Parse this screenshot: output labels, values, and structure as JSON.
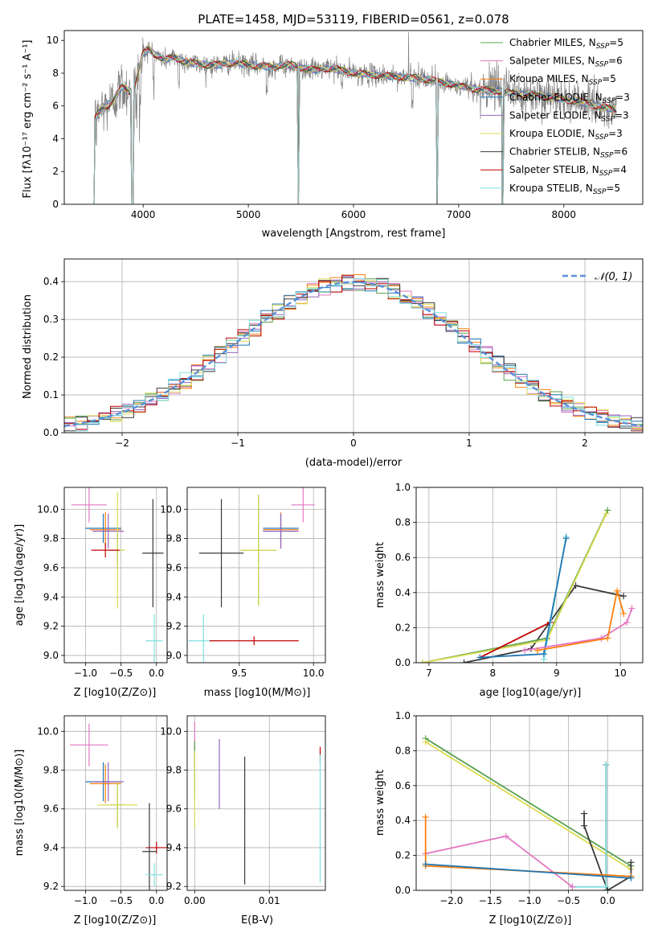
{
  "chart_data": [
    {
      "type": "line",
      "title": "PLATE=1458, MJD=53119, FIBERID=0561, z=0.078",
      "xlabel": "wavelength [Angstrom, rest frame]",
      "ylabel": "Flux [fλ10⁻¹⁷ erg cm⁻² s⁻¹ A⁻¹]",
      "xlim": [
        3250,
        8750
      ],
      "ylim": [
        0,
        10.6
      ],
      "xticks": [
        4000,
        5000,
        6000,
        7000,
        8000
      ],
      "yticks": [
        0,
        2,
        4,
        6,
        8,
        10
      ],
      "legend": {
        "placement": "top-right",
        "entries": [
          {
            "name": "Chabrier MILES",
            "nssp": "5",
            "color": "#59a14f"
          },
          {
            "name": "Salpeter MILES",
            "nssp": "6",
            "color": "#e377c2"
          },
          {
            "name": "Kroupa MILES",
            "nssp": "5",
            "color": "#ff7f0e"
          },
          {
            "name": "Chabrier ELODIE",
            "nssp": "3",
            "color": "#1f77b4"
          },
          {
            "name": "Salpeter ELODIE",
            "nssp": "3",
            "color": "#9467bd"
          },
          {
            "name": "Kroupa ELODIE",
            "nssp": "3",
            "color": "#dbdb50"
          },
          {
            "name": "Chabrier STELIB",
            "nssp": "6",
            "color": "#3a3a3a"
          },
          {
            "name": "Salpeter STELIB",
            "nssp": "4",
            "color": "#c00000"
          },
          {
            "name": "Kroupa STELIB",
            "nssp": "5",
            "color": "#7fdfe0"
          }
        ]
      },
      "data_series": {
        "name": "data",
        "color": "#808080"
      },
      "spectrum_anchors": {
        "x": [
          3520,
          3600,
          3700,
          3800,
          3900,
          4000,
          4050,
          4100,
          4200,
          4300,
          4400,
          4500,
          4600,
          4700,
          4800,
          4900,
          5000,
          5200,
          5400,
          5600,
          5800,
          6000,
          6200,
          6400,
          6600,
          6800,
          7000,
          7200,
          7400,
          7600,
          7800,
          8000,
          8200,
          8400,
          8500
        ],
        "y": [
          5.0,
          5.8,
          6.2,
          7.2,
          6.8,
          9.2,
          9.5,
          9.2,
          8.8,
          9.0,
          8.7,
          8.6,
          8.5,
          8.5,
          8.6,
          8.6,
          8.5,
          8.4,
          8.5,
          8.2,
          8.3,
          8.0,
          7.9,
          7.8,
          7.7,
          7.5,
          7.2,
          7.0,
          6.9,
          6.7,
          6.6,
          6.4,
          6.2,
          5.9,
          5.7
        ]
      }
    },
    {
      "type": "bar",
      "xlabel": "(data-model)/error",
      "ylabel": "Normed distribution",
      "xlim": [
        -2.5,
        2.5
      ],
      "ylim": [
        0,
        0.46
      ],
      "xticks": [
        -2,
        -1,
        0,
        1,
        2
      ],
      "yticks": [
        0.0,
        0.1,
        0.2,
        0.3,
        0.4
      ],
      "legend": {
        "placement": "top-right",
        "entries": [
          {
            "name": "𝒩(0, 1)",
            "color": "#5b8fd6",
            "style": "dashed"
          }
        ]
      },
      "bin_width": 0.1,
      "bin_start": -2.5,
      "num_bins": 50,
      "num_histograms": 9
    },
    {
      "type": "scatter",
      "xlabel": "Z [log10(Z/Z⊙)]",
      "ylabel": "age  [log10(age/yr)]",
      "xlim": [
        -1.3,
        0.15
      ],
      "ylim": [
        8.95,
        10.15
      ],
      "xticks": [
        -1.0,
        -0.5,
        0.0
      ],
      "yticks": [
        9.0,
        9.2,
        9.4,
        9.6,
        9.8,
        10.0
      ],
      "points": [
        {
          "color": "#e377c2",
          "x": -0.95,
          "xerr": 0.25,
          "y": 10.03,
          "yerr": 0.12
        },
        {
          "color": "#1f77b4",
          "x": -0.75,
          "xerr": 0.25,
          "y": 9.87,
          "yerr": 0.1
        },
        {
          "color": "#ff7f0e",
          "x": -0.72,
          "xerr": 0.22,
          "y": 9.86,
          "yerr": 0.12
        },
        {
          "color": "#9467bd",
          "x": -0.68,
          "xerr": 0.22,
          "y": 9.85,
          "yerr": 0.12
        },
        {
          "color": "#59a14f",
          "x": -0.55,
          "xerr": 0.1,
          "y": 9.72,
          "yerr": 0.12
        },
        {
          "color": "#dbdb50",
          "x": -0.55,
          "xerr": 0.1,
          "y": 9.72,
          "yerr": 0.4
        },
        {
          "color": "#c00000",
          "x": -0.72,
          "xerr": 0.2,
          "y": 9.72,
          "yerr": 0.05
        },
        {
          "color": "#3a3a3a",
          "x": -0.05,
          "xerr": 0.15,
          "y": 9.7,
          "yerr": 0.37
        },
        {
          "color": "#7fdfe0",
          "x": -0.03,
          "xerr": 0.12,
          "y": 9.1,
          "yerr": 0.18
        }
      ]
    },
    {
      "type": "scatter",
      "xlabel": "mass [log10(M/M⊙)]",
      "ylabel": "",
      "xlim": [
        9.15,
        10.08
      ],
      "ylim": [
        8.95,
        10.15
      ],
      "xticks": [
        9.5,
        10.0
      ],
      "yticks": [
        9.0,
        9.2,
        9.4,
        9.6,
        9.8,
        10.0
      ],
      "points": [
        {
          "color": "#e377c2",
          "x": 9.93,
          "xerr": 0.08,
          "y": 10.03,
          "yerr": 0.12
        },
        {
          "color": "#1f77b4",
          "x": 9.78,
          "xerr": 0.12,
          "y": 9.87,
          "yerr": 0.1
        },
        {
          "color": "#ff7f0e",
          "x": 9.78,
          "xerr": 0.12,
          "y": 9.86,
          "yerr": 0.12
        },
        {
          "color": "#9467bd",
          "x": 9.78,
          "xerr": 0.12,
          "y": 9.85,
          "yerr": 0.12
        },
        {
          "color": "#59a14f",
          "x": 9.63,
          "xerr": 0.12,
          "y": 9.72,
          "yerr": 0.38
        },
        {
          "color": "#dbdb50",
          "x": 9.63,
          "xerr": 0.12,
          "y": 9.72,
          "yerr": 0.38
        },
        {
          "color": "#3a3a3a",
          "x": 9.38,
          "xerr": 0.15,
          "y": 9.7,
          "yerr": 0.37
        },
        {
          "color": "#7fdfe0",
          "x": 9.26,
          "xerr": 0.1,
          "y": 9.1,
          "yerr": 0.18
        },
        {
          "color": "#c00000",
          "x": 9.6,
          "xerr": 0.3,
          "y": 9.1,
          "yerr": 0.03
        }
      ]
    },
    {
      "type": "line",
      "xlabel": "age  [log10(age/yr)]",
      "ylabel": "mass weight",
      "xlim": [
        6.8,
        10.35
      ],
      "ylim": [
        0,
        1.0
      ],
      "xticks": [
        7,
        8,
        9,
        10
      ],
      "yticks": [
        0.0,
        0.2,
        0.4,
        0.6,
        0.8,
        1.0
      ],
      "series": [
        {
          "color": "#3a3a3a",
          "x": [
            7.55,
            8.6,
            9.3,
            10.05
          ],
          "y": [
            0.0,
            0.08,
            0.44,
            0.38
          ]
        },
        {
          "color": "#59a14f",
          "x": [
            6.9,
            8.85,
            9.8
          ],
          "y": [
            0.0,
            0.14,
            0.87
          ]
        },
        {
          "color": "#dbdb50",
          "x": [
            6.9,
            8.85,
            9.78
          ],
          "y": [
            0.0,
            0.13,
            0.85
          ]
        },
        {
          "color": "#c00000",
          "x": [
            7.8,
            8.9
          ],
          "y": [
            0.03,
            0.23
          ]
        },
        {
          "color": "#7fdfe0",
          "x": [
            8.8,
            9.15
          ],
          "y": [
            0.02,
            0.72
          ]
        },
        {
          "color": "#1f77b4",
          "x": [
            7.8,
            8.8,
            9.15
          ],
          "y": [
            0.03,
            0.05,
            0.71
          ]
        },
        {
          "color": "#e377c2",
          "x": [
            8.5,
            9.7,
            10.1,
            10.18
          ],
          "y": [
            0.07,
            0.14,
            0.23,
            0.31
          ]
        },
        {
          "color": "#ff7f0e",
          "x": [
            8.7,
            9.8,
            9.95,
            10.05
          ],
          "y": [
            0.07,
            0.14,
            0.41,
            0.28
          ]
        }
      ]
    },
    {
      "type": "scatter",
      "xlabel": "Z [log10(Z/Z⊙)]",
      "ylabel": "mass [log10(M/M⊙)]",
      "xlim": [
        -1.3,
        0.15
      ],
      "ylim": [
        9.18,
        10.08
      ],
      "xticks": [
        -1.0,
        -0.5,
        0.0
      ],
      "yticks": [
        9.2,
        9.4,
        9.6,
        9.8,
        10.0
      ],
      "points": [
        {
          "color": "#e377c2",
          "x": -0.95,
          "xerr": 0.27,
          "y": 9.93,
          "yerr": 0.11
        },
        {
          "color": "#1f77b4",
          "x": -0.75,
          "xerr": 0.25,
          "y": 9.74,
          "yerr": 0.1
        },
        {
          "color": "#ff7f0e",
          "x": -0.72,
          "xerr": 0.22,
          "y": 9.73,
          "yerr": 0.1
        },
        {
          "color": "#9467bd",
          "x": -0.68,
          "xerr": 0.22,
          "y": 9.74,
          "yerr": 0.1
        },
        {
          "color": "#59a14f",
          "x": -0.55,
          "xerr": 0.1,
          "y": 9.62,
          "yerr": 0.12
        },
        {
          "color": "#dbdb50",
          "x": -0.55,
          "xerr": 0.28,
          "y": 9.62,
          "yerr": 0.12
        },
        {
          "color": "#c00000",
          "x": 0.0,
          "xerr": 0.15,
          "y": 9.4,
          "yerr": 0.03
        },
        {
          "color": "#3a3a3a",
          "x": -0.1,
          "xerr": 0.1,
          "y": 9.38,
          "yerr": 0.25
        },
        {
          "color": "#7fdfe0",
          "x": -0.03,
          "xerr": 0.12,
          "y": 9.26,
          "yerr": 0.06
        }
      ]
    },
    {
      "type": "scatter",
      "xlabel": "E(B-V)",
      "ylabel": "",
      "xlim": [
        -0.001,
        0.0175
      ],
      "ylim": [
        9.18,
        10.08
      ],
      "xticks": [
        0.0,
        0.01
      ],
      "xticklabels": [
        "0.00",
        "0.01"
      ],
      "yticks": [
        9.2,
        9.4,
        9.6,
        9.8,
        10.0
      ],
      "points": [
        {
          "color": "#e377c2",
          "x": 0.0,
          "y": 9.93,
          "yerr": 0.12
        },
        {
          "color": "#59a14f",
          "x": 0.0,
          "y": 9.8,
          "yerr": 0.15
        },
        {
          "color": "#dbdb50",
          "x": 0.0,
          "y": 9.7,
          "yerr": 0.2
        },
        {
          "color": "#9467bd",
          "x": 0.0033,
          "y": 9.78,
          "yerr": 0.18
        },
        {
          "color": "#3a3a3a",
          "x": 0.0067,
          "y": 9.54,
          "yerr": 0.33
        },
        {
          "color": "#c00000",
          "x": 0.0168,
          "y": 9.88,
          "yerr": 0.04
        },
        {
          "color": "#7fdfe0",
          "x": 0.0168,
          "y": 9.55,
          "yerr": 0.33
        }
      ]
    },
    {
      "type": "line",
      "xlabel": "Z [log10(Z/Z⊙)]",
      "ylabel": "mass weight",
      "xlim": [
        -2.45,
        0.45
      ],
      "ylim": [
        0,
        1.0
      ],
      "xticks": [
        -2.0,
        -1.5,
        -1.0,
        -0.5,
        0.0
      ],
      "yticks": [
        0.0,
        0.2,
        0.4,
        0.6,
        0.8,
        1.0
      ],
      "series": [
        {
          "color": "#59a14f",
          "x": [
            -2.33,
            0.3
          ],
          "y": [
            0.87,
            0.14
          ]
        },
        {
          "color": "#dbdb50",
          "x": [
            -2.33,
            0.3
          ],
          "y": [
            0.85,
            0.12
          ]
        },
        {
          "color": "#3a3a3a",
          "x": [
            -0.02,
            -0.02,
            0.0,
            0.3,
            0.3
          ],
          "y": [
            0.72,
            0.0,
            0.0,
            0.08,
            0.16
          ]
        },
        {
          "color": "#3a3a3a",
          "x": [
            -0.3,
            -0.3,
            0.0
          ],
          "y": [
            0.44,
            0.37,
            0.0
          ]
        },
        {
          "color": "#7fdfe0",
          "x": [
            -0.02,
            -0.02,
            -0.45
          ],
          "y": [
            0.72,
            0.02,
            0.02
          ]
        },
        {
          "color": "#e377c2",
          "x": [
            -2.33,
            -1.3,
            -0.45,
            -0.45
          ],
          "y": [
            0.21,
            0.31,
            0.02,
            0.02
          ]
        },
        {
          "color": "#ff7f0e",
          "x": [
            -2.33,
            -2.33,
            0.3
          ],
          "y": [
            0.42,
            0.14,
            0.08
          ]
        },
        {
          "color": "#1f77b4",
          "x": [
            -2.33,
            0.3
          ],
          "y": [
            0.15,
            0.07
          ]
        }
      ]
    }
  ]
}
